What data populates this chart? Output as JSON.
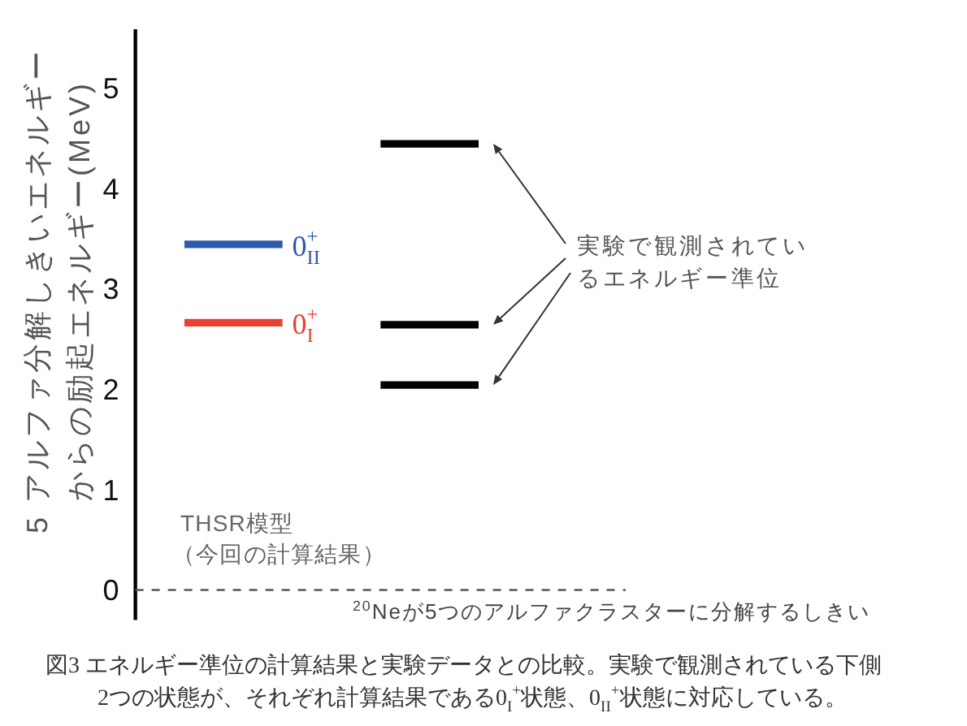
{
  "chart_data": {
    "type": "line",
    "categories": [
      null,
      null,
      null,
      null,
      null
    ],
    "tick_labels": "y",
    "ylim": [
      -0.3,
      5.58
    ],
    "yticks": [
      0,
      1,
      2,
      3,
      4,
      5
    ],
    "ylabel": "5 アルファ分解しきいエネルギーからの励起エネルギー(MeV)",
    "series": [
      {
        "name": "0$_{II}$$^{+}$",
        "color": "#2c5aa8",
        "values": [
          3.44,
          3.44,
          null,
          null,
          null
        ]
      },
      {
        "name": "0$_{I}$$^{+}$",
        "color": "#e8412f",
        "values": [
          2.66,
          2.66,
          null,
          null,
          null
        ]
      },
      {
        "color": "#000000",
        "values": [
          null,
          null,
          4.44,
          4.44,
          null
        ]
      },
      {
        "color": "#000000",
        "values": [
          null,
          null,
          2.64,
          2.64,
          null
        ]
      },
      {
        "color": "#000000",
        "values": [
          null,
          null,
          2.04,
          2.04,
          null
        ]
      }
    ],
    "ref_lines": [
      {
        "axis": "y",
        "value": 0,
        "label": "$^{20}$Neが5つのアルファクラスターに分解するしきい",
        "line_style": "dashed",
        "color": "#555555"
      }
    ],
    "annotations": [
      "THSR模型",
      "（今回の計算結果）",
      "実験で観測されているエネルギー準位",
      "図3 エネルギー準位の計算結果と実験データとの比較。実験で観測されている下側2つの状態が、それぞれ計算結果である0$_{I}$$^{+}$状態、0$_{II}$$^{+}$状態に対応している。"
    ]
  }
}
